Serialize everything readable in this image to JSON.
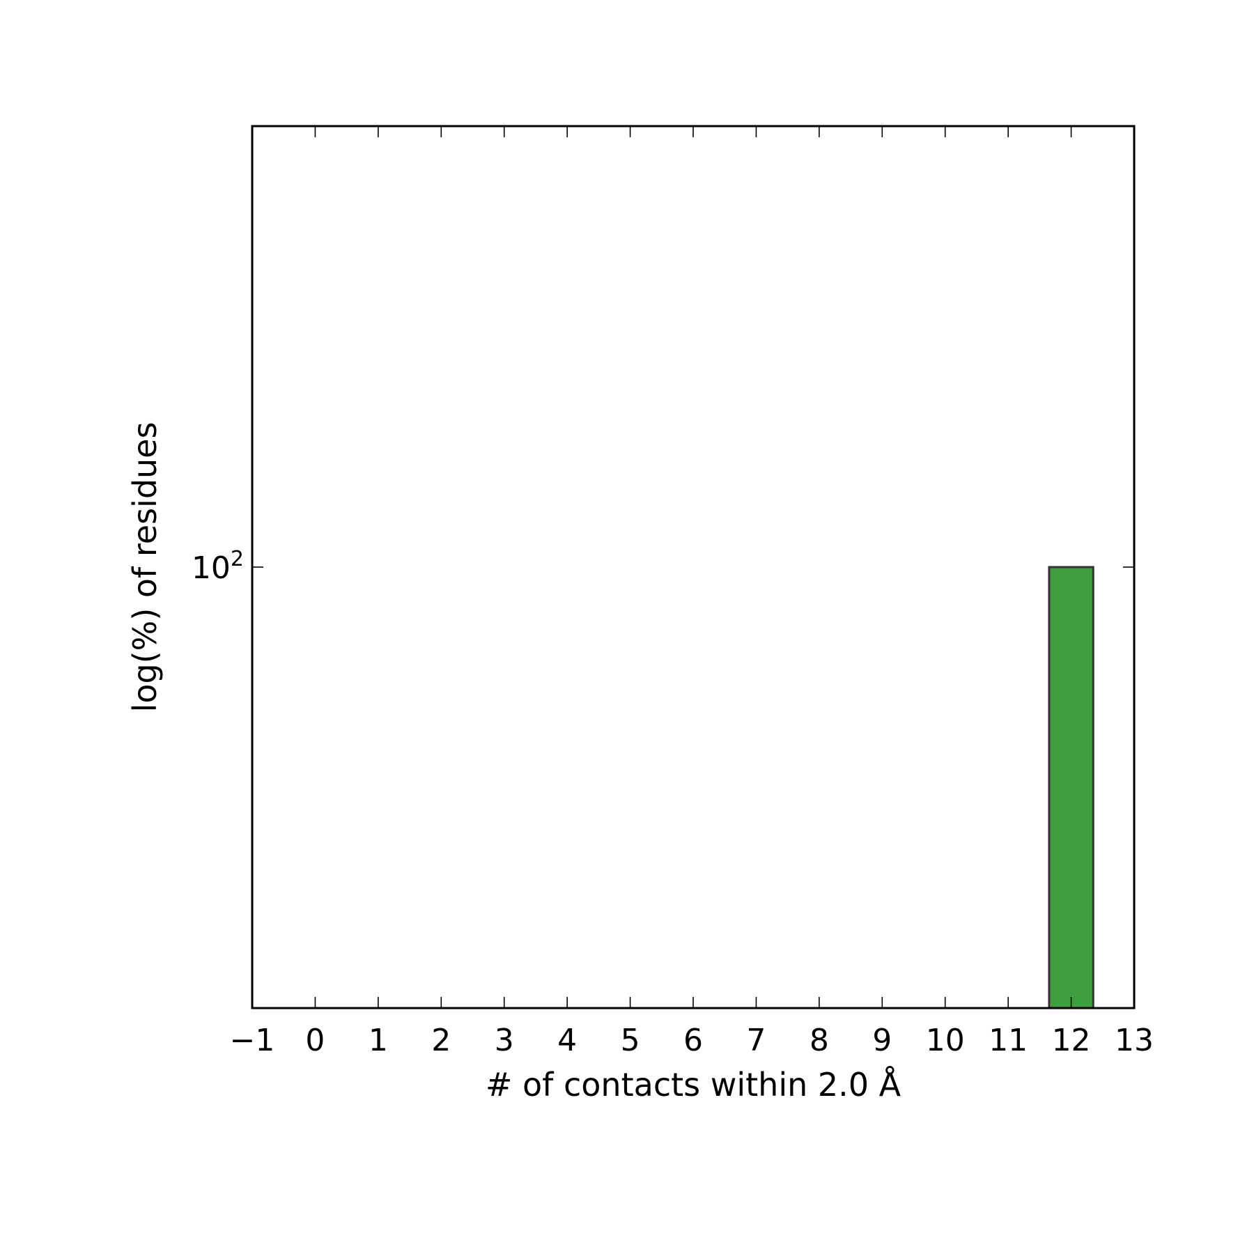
{
  "chart_data": {
    "type": "bar",
    "y_scale": "log",
    "grid": false,
    "x": [
      12
    ],
    "values": [
      100
    ],
    "xlim": [
      -1,
      13
    ],
    "ylim": [
      10,
      1000
    ],
    "x_ticks": [
      -1,
      0,
      1,
      2,
      3,
      4,
      5,
      6,
      7,
      8,
      9,
      10,
      11,
      12,
      13
    ],
    "x_tick_labels": [
      "−1",
      "0",
      "1",
      "2",
      "3",
      "4",
      "5",
      "6",
      "7",
      "8",
      "9",
      "10",
      "11",
      "12",
      "13"
    ],
    "y_ticks": [
      100
    ],
    "y_tick_labels": [
      {
        "base": "10",
        "exp": "2"
      }
    ],
    "xlabel": "# of contacts within 2.0 Å",
    "ylabel": "log(%) of residues",
    "colors": {
      "bar_fill": "#3f9f3f",
      "bar_edge": "#333333",
      "axis": "#000000"
    }
  }
}
